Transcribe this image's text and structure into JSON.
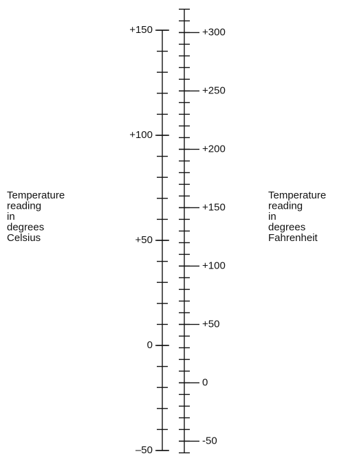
{
  "celsius": {
    "title_lines": [
      "Temperature",
      "reading",
      "in",
      "degrees",
      "Celsius"
    ],
    "range": [
      -50,
      150
    ],
    "ticks": [
      {
        "value": 150,
        "label": "+150"
      },
      {
        "value": 100,
        "label": "+100"
      },
      {
        "value": 50,
        "label": "+50"
      },
      0,
      {
        "value": -50,
        "label": "–50"
      }
    ],
    "minor_ticks": [
      -50,
      -40,
      -30,
      -20,
      -10,
      0,
      10,
      20,
      30,
      40,
      50,
      60,
      70,
      80,
      90,
      100,
      110,
      120,
      130,
      140,
      150
    ]
  },
  "fahrenheit": {
    "title_lines": [
      "Temperature",
      "reading",
      "in",
      "degrees",
      "Fahrenheit"
    ],
    "range": [
      -60,
      320
    ],
    "ticks": [
      {
        "value": 300,
        "label": "+300"
      },
      {
        "value": 250,
        "label": "+250"
      },
      {
        "value": 200,
        "label": "+200"
      },
      {
        "value": 150,
        "label": "+150"
      },
      {
        "value": 100,
        "label": "+100"
      },
      {
        "value": 50,
        "label": "+50"
      },
      0,
      -50
    ],
    "minor_ticks": [
      -60,
      -50,
      -40,
      -30,
      -20,
      -10,
      0,
      10,
      20,
      30,
      40,
      50,
      60,
      70,
      80,
      90,
      100,
      110,
      120,
      130,
      140,
      150,
      160,
      170,
      180,
      190,
      200,
      210,
      220,
      230,
      240,
      250,
      260,
      270,
      280,
      290,
      300,
      310,
      320
    ]
  }
}
